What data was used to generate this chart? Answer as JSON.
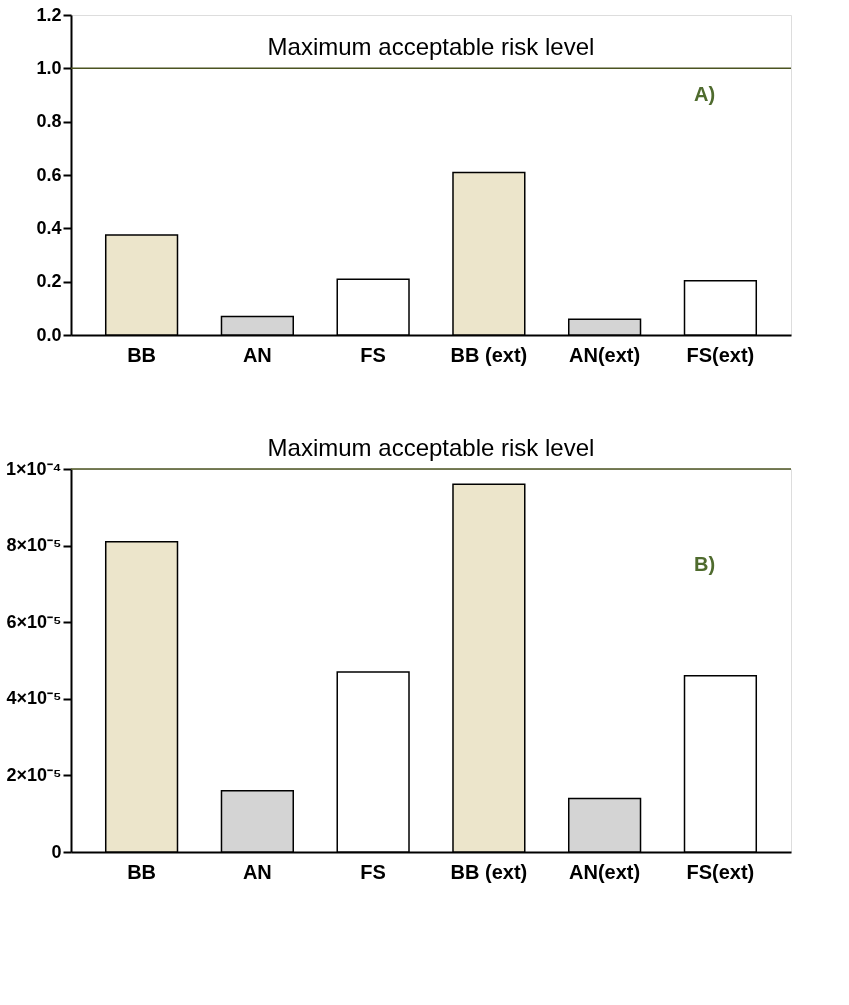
{
  "chart_data": [
    {
      "type": "bar",
      "categories": [
        "BB",
        "AN",
        "FS",
        "BB (ext)",
        "AN(ext)",
        "FS(ext)"
      ],
      "values": [
        0.375,
        0.069,
        0.209,
        0.609,
        0.059,
        0.203
      ],
      "colors": [
        "#ece5cb",
        "#d4d4d4",
        "#ffffff",
        "#ece5cb",
        "#d4d4d4",
        "#ffffff"
      ],
      "ylim": [
        0,
        1.2
      ],
      "yticks": [
        {
          "value": 0,
          "label": "0.0"
        },
        0.2,
        0.4,
        0.6,
        0.8,
        {
          "value": 1,
          "label": "1.0"
        },
        1.2
      ],
      "ref_lines": [
        {
          "axis": "y",
          "value": 1,
          "label": "Maximum acceptable risk level",
          "color": "#4b5320"
        }
      ],
      "annotations": [
        "A)"
      ],
      "grid": false
    },
    {
      "type": "bar",
      "categories": [
        "BB",
        "AN",
        "FS",
        "BB (ext)",
        "AN(ext)",
        "FS(ext)"
      ],
      "values": [
        8.1e-05,
        1.6e-05,
        4.7e-05,
        9.6e-05,
        1.4e-05,
        4.6e-05
      ],
      "colors": [
        "#ece5cb",
        "#d4d4d4",
        "#ffffff",
        "#ece5cb",
        "#d4d4d4",
        "#ffffff"
      ],
      "ylim": [
        0,
        0.0001
      ],
      "yticks": [
        0,
        {
          "value": 2e-05,
          "label": "2×10⁻⁵"
        },
        {
          "value": 4e-05,
          "label": "4×10⁻⁵"
        },
        {
          "value": 6e-05,
          "label": "6×10⁻⁵"
        },
        {
          "value": 8e-05,
          "label": "8×10⁻⁵"
        },
        {
          "value": 0.0001,
          "label": "1×10⁻⁴"
        }
      ],
      "ref_lines": [
        {
          "axis": "y",
          "value": 0.0001,
          "label": "Maximum acceptable risk level",
          "color": "#4b5320"
        }
      ],
      "annotations": [
        "B)"
      ],
      "grid": false
    }
  ]
}
